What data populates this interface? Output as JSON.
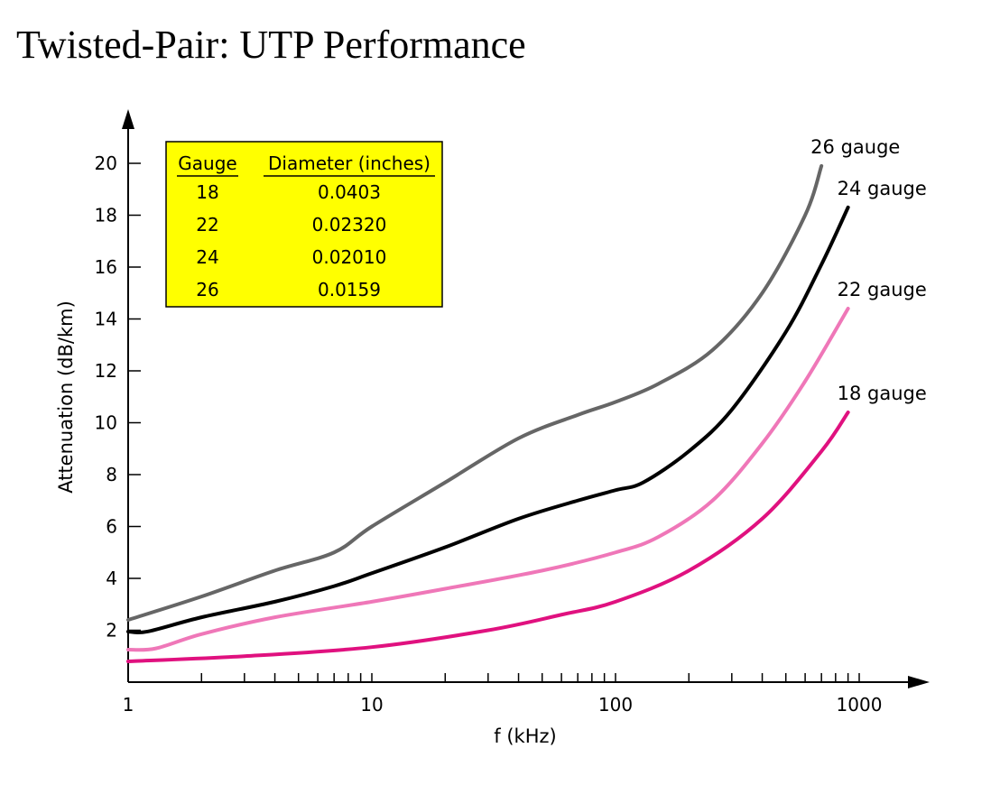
{
  "page": {
    "title": "Twisted-Pair: UTP Performance"
  },
  "colors": {
    "axis": "#000000",
    "inset_bg": "#ffff00",
    "gauge_26": "#666666",
    "gauge_24": "#000000",
    "gauge_22": "#ef77b8",
    "gauge_18": "#e0117f"
  },
  "chart_data": {
    "type": "line",
    "title": "",
    "xlabel": "f (kHz)",
    "ylabel": "Attenuation (dB/km)",
    "xscale": "log",
    "xlim": [
      1,
      1000
    ],
    "ylim": [
      0,
      21
    ],
    "x_tick_labels": [
      {
        "value": 1,
        "label": "1"
      },
      {
        "value": 10,
        "label": "10"
      },
      {
        "value": 100,
        "label": "100"
      },
      {
        "value": 1000,
        "label": "1000"
      }
    ],
    "y_tick_labels": [
      {
        "value": 2,
        "label": "2"
      },
      {
        "value": 4,
        "label": "4"
      },
      {
        "value": 6,
        "label": "6"
      },
      {
        "value": 8,
        "label": "8"
      },
      {
        "value": 10,
        "label": "10"
      },
      {
        "value": 12,
        "label": "12"
      },
      {
        "value": 14,
        "label": "14"
      },
      {
        "value": 16,
        "label": "16"
      },
      {
        "value": 18,
        "label": "18"
      },
      {
        "value": 20,
        "label": "20"
      }
    ],
    "grid": false,
    "series": [
      {
        "name": "26 gauge",
        "color_key": "gauge_26",
        "points": [
          [
            1,
            2.4
          ],
          [
            2,
            3.3
          ],
          [
            4,
            4.3
          ],
          [
            7,
            5.0
          ],
          [
            10,
            6.0
          ],
          [
            20,
            7.7
          ],
          [
            40,
            9.4
          ],
          [
            70,
            10.3
          ],
          [
            100,
            10.8
          ],
          [
            150,
            11.5
          ],
          [
            250,
            12.8
          ],
          [
            400,
            15.0
          ],
          [
            600,
            18.0
          ],
          [
            700,
            19.9
          ]
        ]
      },
      {
        "name": "24 gauge",
        "color_key": "gauge_24",
        "points": [
          [
            1,
            1.95
          ],
          [
            1.2,
            1.95
          ],
          [
            2,
            2.5
          ],
          [
            4,
            3.1
          ],
          [
            7,
            3.7
          ],
          [
            10,
            4.2
          ],
          [
            20,
            5.2
          ],
          [
            40,
            6.3
          ],
          [
            70,
            7.0
          ],
          [
            100,
            7.4
          ],
          [
            130,
            7.7
          ],
          [
            200,
            8.9
          ],
          [
            300,
            10.5
          ],
          [
            500,
            13.5
          ],
          [
            700,
            16.1
          ],
          [
            900,
            18.3
          ]
        ]
      },
      {
        "name": "22 gauge",
        "color_key": "gauge_22",
        "points": [
          [
            1,
            1.25
          ],
          [
            1.3,
            1.3
          ],
          [
            2,
            1.85
          ],
          [
            4,
            2.5
          ],
          [
            10,
            3.1
          ],
          [
            20,
            3.6
          ],
          [
            50,
            4.3
          ],
          [
            100,
            5.0
          ],
          [
            150,
            5.6
          ],
          [
            250,
            7.0
          ],
          [
            400,
            9.2
          ],
          [
            600,
            11.6
          ],
          [
            900,
            14.4
          ]
        ]
      },
      {
        "name": "18 gauge",
        "color_key": "gauge_18",
        "points": [
          [
            1,
            0.8
          ],
          [
            3,
            1.0
          ],
          [
            10,
            1.35
          ],
          [
            30,
            2.0
          ],
          [
            60,
            2.6
          ],
          [
            100,
            3.1
          ],
          [
            200,
            4.3
          ],
          [
            400,
            6.3
          ],
          [
            700,
            8.9
          ],
          [
            900,
            10.4
          ]
        ]
      }
    ],
    "inset_table": {
      "headers": [
        "Gauge",
        "Diameter (inches)"
      ],
      "rows": [
        [
          "18",
          "0.0403"
        ],
        [
          "22",
          "0.02320"
        ],
        [
          "24",
          "0.02010"
        ],
        [
          "26",
          "0.0159"
        ]
      ]
    }
  }
}
